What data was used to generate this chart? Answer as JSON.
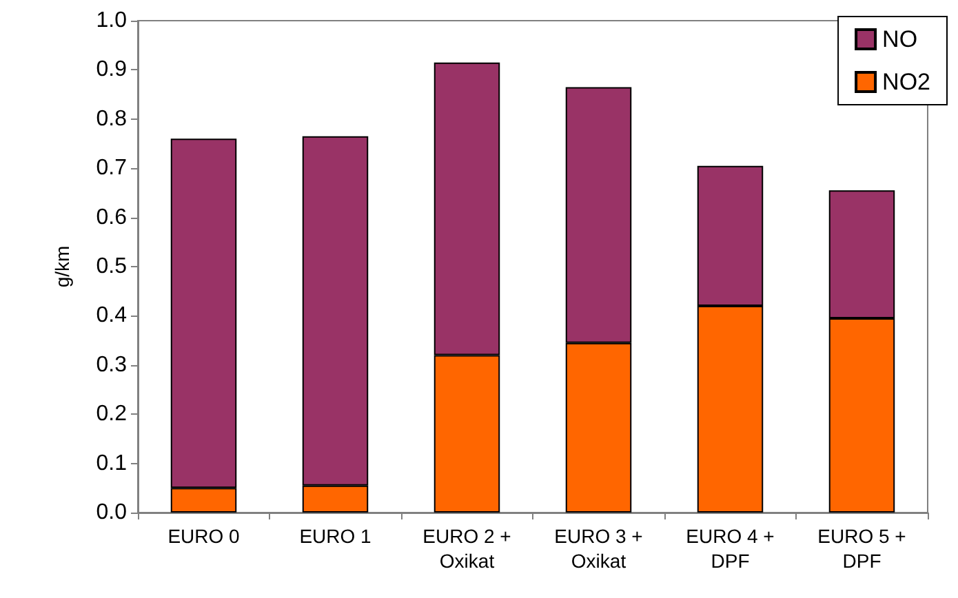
{
  "chart_data": {
    "type": "bar",
    "stacked": true,
    "ylabel": "g/km",
    "categories": [
      "EURO 0",
      "EURO 1",
      "EURO 2 +\nOxikat",
      "EURO 3 +\nOxikat",
      "EURO 4 +\nDPF",
      "EURO 5 +\nDPF"
    ],
    "series": [
      {
        "name": "NO2",
        "color": "#ff6600",
        "values": [
          0.05,
          0.055,
          0.32,
          0.345,
          0.42,
          0.395
        ]
      },
      {
        "name": "NO",
        "color": "#993366",
        "values": [
          0.71,
          0.71,
          0.595,
          0.52,
          0.285,
          0.26
        ]
      }
    ],
    "ylim": [
      0,
      1
    ],
    "yticks": [
      {
        "value": 0,
        "label": "0.0"
      },
      {
        "value": 0.1,
        "label": "0.1"
      },
      {
        "value": 0.2,
        "label": "0.2"
      },
      {
        "value": 0.3,
        "label": "0.3"
      },
      {
        "value": 0.4,
        "label": "0.4"
      },
      {
        "value": 0.5,
        "label": "0.5"
      },
      {
        "value": 0.6,
        "label": "0.6"
      },
      {
        "value": 0.7,
        "label": "0.7"
      },
      {
        "value": 0.8,
        "label": "0.8"
      },
      {
        "value": 0.9,
        "label": "0.9"
      },
      {
        "value": 1,
        "label": "1.0"
      }
    ],
    "grid": false,
    "legend": "top right"
  }
}
